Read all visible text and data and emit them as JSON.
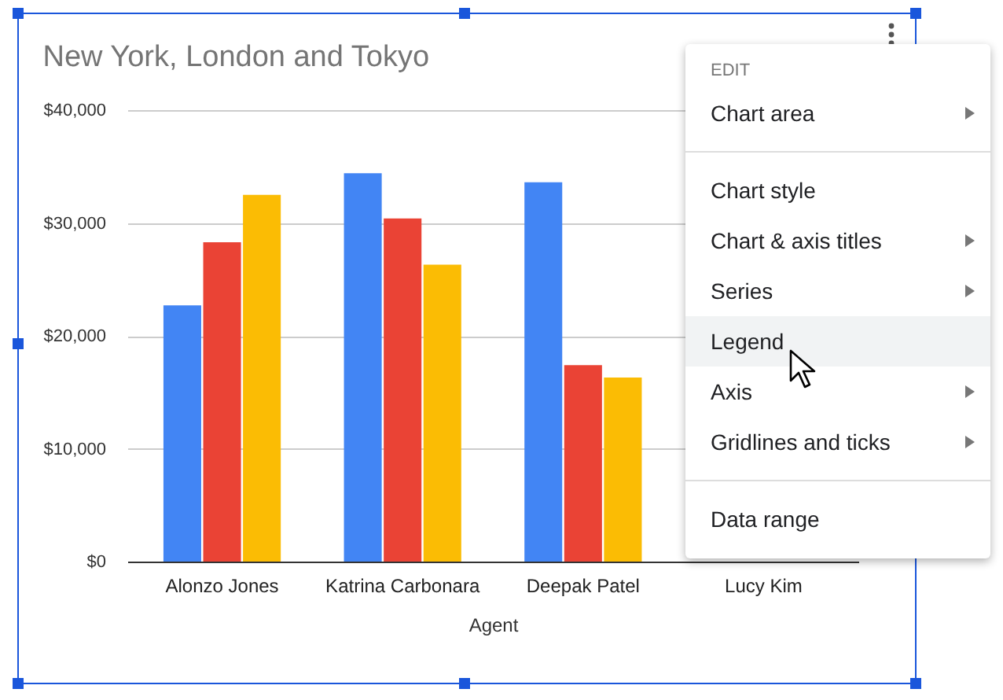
{
  "chart_data": {
    "type": "bar",
    "title": "New York, London and Tokyo",
    "xlabel": "Agent",
    "categories": [
      "Alonzo Jones",
      "Katrina Carbonara",
      "Deepak Patel",
      "Lucy Kim"
    ],
    "series": [
      {
        "color": "#4285f4",
        "values": [
          22700,
          34400,
          33600,
          null
        ]
      },
      {
        "color": "#ea4335",
        "values": [
          28300,
          30400,
          17400,
          null
        ]
      },
      {
        "color": "#fbbc04",
        "values": [
          32500,
          26300,
          16300,
          null
        ]
      }
    ],
    "ylim": [
      0,
      40000
    ],
    "yticks": [
      {
        "value": 0,
        "label": "$0"
      },
      {
        "value": 10000,
        "label": "$10,000"
      },
      {
        "value": 20000,
        "label": "$20,000"
      },
      {
        "value": 30000,
        "label": "$30,000"
      },
      {
        "value": 40000,
        "label": "$40,000"
      }
    ],
    "grid": "y",
    "legend": false,
    "annotations": [
      "EDIT",
      "Chart area",
      "Chart style",
      "Chart & axis titles",
      "Series",
      "Legend",
      "Axis",
      "Gridlines and ticks",
      "Data range"
    ]
  }
}
